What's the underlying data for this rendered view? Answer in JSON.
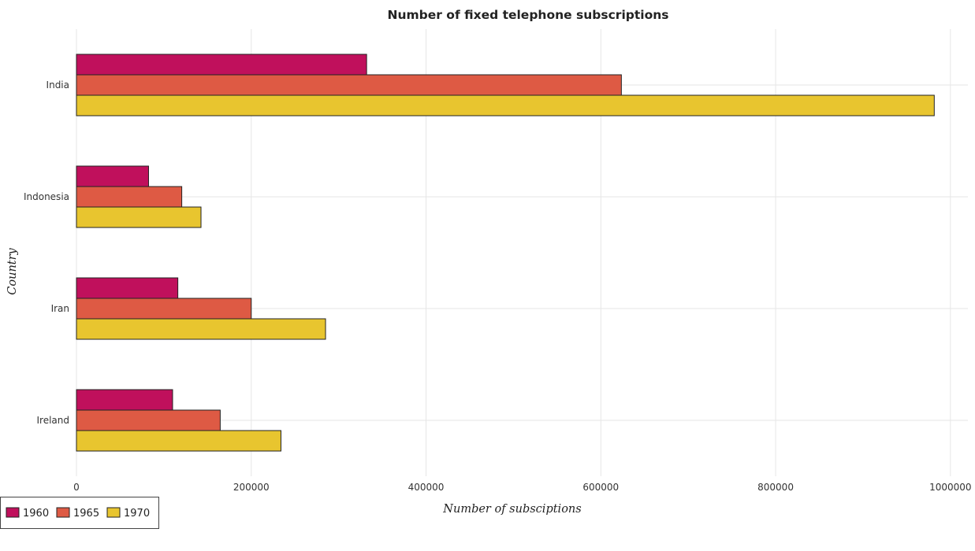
{
  "chart_data": {
    "type": "bar",
    "orientation": "horizontal",
    "title": "Number of fixed telephone subscriptions",
    "xlabel": "Number of subsciptions",
    "ylabel": "Country",
    "categories": [
      "India",
      "Indonesia",
      "Iran",
      "Ireland"
    ],
    "series": [
      {
        "name": "1960",
        "color": "#c0105c",
        "values": [
          332000,
          82500,
          116000,
          110000
        ]
      },
      {
        "name": "1965",
        "color": "#de5a44",
        "values": [
          623500,
          120500,
          200000,
          164500
        ]
      },
      {
        "name": "1970",
        "color": "#e8c52f",
        "values": [
          981500,
          142500,
          285000,
          234000
        ]
      }
    ],
    "xlim": [
      0,
      1020000
    ],
    "xticks": [
      0,
      200000,
      400000,
      600000,
      800000,
      1000000
    ],
    "xtick_labels": [
      "0",
      "200000",
      "400000",
      "600000",
      "800000",
      "1000000"
    ],
    "grid": true,
    "legend_position": "bottom-left"
  }
}
